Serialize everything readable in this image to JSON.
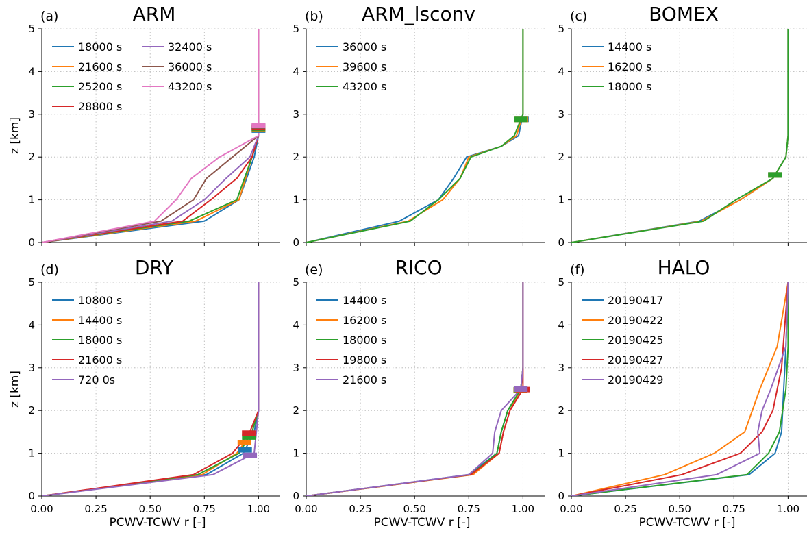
{
  "chart_data": [
    {
      "type": "line",
      "letter": "(a)",
      "title": "ARM",
      "xlabel": "",
      "ylabel": "z [km]",
      "xlim": [
        0,
        1.1
      ],
      "ylim": [
        0,
        5
      ],
      "xticks": [
        0,
        0.25,
        0.5,
        0.75,
        1.0
      ],
      "yticks": [
        0,
        1,
        2,
        3,
        4,
        5
      ],
      "xtick_labels": [
        "",
        "",
        "",
        "",
        ""
      ],
      "ytick_labels": [
        "0",
        "1",
        "2",
        "3",
        "4",
        "5"
      ],
      "grid": true,
      "legend_columns": 2,
      "series": [
        {
          "name": "18000 s",
          "color": "#1f77b4",
          "x": [
            0,
            0.75,
            0.91,
            0.98,
            1.0,
            1.0
          ],
          "y": [
            0,
            0.5,
            1.0,
            2.0,
            2.5,
            5
          ],
          "marker_z": 2.63
        },
        {
          "name": "21600 s",
          "color": "#ff7f0e",
          "x": [
            0,
            0.71,
            0.91,
            0.97,
            1.0,
            1.0
          ],
          "y": [
            0,
            0.5,
            1.0,
            2.0,
            2.5,
            5
          ],
          "marker_z": 2.65
        },
        {
          "name": "25200 s",
          "color": "#2ca02c",
          "x": [
            0,
            0.68,
            0.9,
            0.97,
            1.0,
            1.0
          ],
          "y": [
            0,
            0.5,
            1.0,
            2.0,
            2.5,
            5
          ],
          "marker_z": 2.67
        },
        {
          "name": "28800 s",
          "color": "#d62728",
          "x": [
            0,
            0.65,
            0.78,
            0.9,
            0.97,
            1.0,
            1.0
          ],
          "y": [
            0,
            0.5,
            1.0,
            1.5,
            2.0,
            2.5,
            5
          ],
          "marker_z": 2.69
        },
        {
          "name": "32400 s",
          "color": "#9467bd",
          "x": [
            0,
            0.6,
            0.75,
            0.85,
            0.96,
            1.0,
            1.0
          ],
          "y": [
            0,
            0.5,
            1.0,
            1.5,
            2.0,
            2.5,
            5
          ],
          "marker_z": 2.71
        },
        {
          "name": "36000 s",
          "color": "#8c564b",
          "x": [
            0,
            0.55,
            0.7,
            0.76,
            0.88,
            1.0,
            1.0
          ],
          "y": [
            0,
            0.5,
            1.0,
            1.5,
            2.0,
            2.5,
            5
          ],
          "marker_z": 2.72
        },
        {
          "name": "43200 s",
          "color": "#e377c2",
          "x": [
            0,
            0.52,
            0.62,
            0.69,
            0.82,
            1.0,
            1.0
          ],
          "y": [
            0,
            0.5,
            1.0,
            1.5,
            2.0,
            2.5,
            5
          ],
          "marker_z": 2.74
        }
      ]
    },
    {
      "type": "line",
      "letter": "(b)",
      "title": "ARM_lsconv",
      "xlabel": "",
      "ylabel": "",
      "xlim": [
        0,
        1.1
      ],
      "ylim": [
        0,
        5
      ],
      "xticks": [
        0,
        0.25,
        0.5,
        0.75,
        1.0
      ],
      "yticks": [
        0,
        1,
        2,
        3,
        4,
        5
      ],
      "xtick_labels": [
        "",
        "",
        "",
        "",
        ""
      ],
      "ytick_labels": [
        "0",
        "1",
        "2",
        "3",
        "4",
        "5"
      ],
      "grid": true,
      "legend_columns": 1,
      "series": [
        {
          "name": "36000 s",
          "color": "#1f77b4",
          "x": [
            0,
            0.43,
            0.61,
            0.68,
            0.74,
            0.9,
            0.98,
            1.0,
            1.0
          ],
          "y": [
            0,
            0.5,
            1.0,
            1.5,
            2.0,
            2.25,
            2.5,
            3.0,
            5
          ],
          "marker_z": 2.88
        },
        {
          "name": "39600 s",
          "color": "#ff7f0e",
          "x": [
            0,
            0.47,
            0.63,
            0.71,
            0.75,
            0.9,
            0.97,
            1.0,
            1.0
          ],
          "y": [
            0,
            0.5,
            1.0,
            1.5,
            2.0,
            2.25,
            2.5,
            3.0,
            5
          ],
          "marker_z": 2.88
        },
        {
          "name": "43200 s",
          "color": "#2ca02c",
          "x": [
            0,
            0.48,
            0.61,
            0.71,
            0.76,
            0.9,
            0.96,
            1.0,
            1.0
          ],
          "y": [
            0,
            0.5,
            1.0,
            1.5,
            2.0,
            2.25,
            2.5,
            3.0,
            5
          ],
          "marker_z": 2.88
        }
      ]
    },
    {
      "type": "line",
      "letter": "(c)",
      "title": "BOMEX",
      "xlabel": "",
      "ylabel": "",
      "xlim": [
        0,
        1.1
      ],
      "ylim": [
        0,
        5
      ],
      "xticks": [
        0,
        0.25,
        0.5,
        0.75,
        1.0
      ],
      "yticks": [
        0,
        1,
        2,
        3,
        4,
        5
      ],
      "xtick_labels": [
        "",
        "",
        "",
        "",
        ""
      ],
      "ytick_labels": [
        "0",
        "1",
        "2",
        "3",
        "4",
        "5"
      ],
      "grid": true,
      "legend_columns": 1,
      "series": [
        {
          "name": "14400 s",
          "color": "#1f77b4",
          "x": [
            0,
            0.59,
            0.78,
            0.93,
            0.99,
            1.0,
            1.0
          ],
          "y": [
            0,
            0.5,
            1.0,
            1.5,
            2.0,
            2.5,
            5
          ],
          "marker_z": 1.58
        },
        {
          "name": "16200 s",
          "color": "#ff7f0e",
          "x": [
            0,
            0.6,
            0.78,
            0.93,
            0.99,
            1.0,
            1.0
          ],
          "y": [
            0,
            0.5,
            1.0,
            1.5,
            2.0,
            2.5,
            5
          ],
          "marker_z": 1.58
        },
        {
          "name": "18000 s",
          "color": "#2ca02c",
          "x": [
            0,
            0.61,
            0.76,
            0.93,
            0.99,
            1.0,
            1.0
          ],
          "y": [
            0,
            0.5,
            1.0,
            1.5,
            2.0,
            2.5,
            5
          ],
          "marker_z": 1.58
        }
      ]
    },
    {
      "type": "line",
      "letter": "(d)",
      "title": "DRY",
      "xlabel": "PCWV-TCWV r [-]",
      "ylabel": "z [km]",
      "xlim": [
        0,
        1.1
      ],
      "ylim": [
        0,
        5
      ],
      "xticks": [
        0,
        0.25,
        0.5,
        0.75,
        1.0
      ],
      "yticks": [
        0,
        1,
        2,
        3,
        4,
        5
      ],
      "xtick_labels": [
        "0.00",
        "0.25",
        "0.50",
        "0.75",
        "1.00"
      ],
      "ytick_labels": [
        "0",
        "1",
        "2",
        "3",
        "4",
        "5"
      ],
      "grid": true,
      "legend_columns": 1,
      "series": [
        {
          "name": "10800 s",
          "color": "#1f77b4",
          "x": [
            0,
            0.76,
            0.93,
            0.98,
            1.0,
            1.0
          ],
          "y": [
            0,
            0.5,
            1.0,
            1.5,
            2.0,
            5
          ],
          "marker_z": 1.08
        },
        {
          "name": "14400 s",
          "color": "#ff7f0e",
          "x": [
            0,
            0.74,
            0.9,
            0.97,
            1.0,
            1.0
          ],
          "y": [
            0,
            0.5,
            1.0,
            1.5,
            2.0,
            5
          ],
          "marker_z": 1.25
        },
        {
          "name": "18000 s",
          "color": "#2ca02c",
          "x": [
            0,
            0.72,
            0.91,
            0.97,
            1.0,
            1.0
          ],
          "y": [
            0,
            0.5,
            1.0,
            1.5,
            2.0,
            5
          ],
          "marker_z": 1.38
        },
        {
          "name": "21600 s",
          "color": "#d62728",
          "x": [
            0,
            0.7,
            0.88,
            0.96,
            1.0,
            1.0
          ],
          "y": [
            0,
            0.5,
            1.0,
            1.5,
            2.0,
            5
          ],
          "marker_z": 1.47
        },
        {
          "name": "720 0s",
          "color": "#9467bd",
          "x": [
            0,
            0.79,
            0.98,
            0.99,
            1.0,
            1.0
          ],
          "y": [
            0,
            0.5,
            1.0,
            1.5,
            2.0,
            5
          ],
          "marker_z": 0.95
        }
      ]
    },
    {
      "type": "line",
      "letter": "(e)",
      "title": "RICO",
      "xlabel": "PCWV-TCWV r [-]",
      "ylabel": "",
      "xlim": [
        0,
        1.1
      ],
      "ylim": [
        0,
        5
      ],
      "xticks": [
        0,
        0.25,
        0.5,
        0.75,
        1.0
      ],
      "yticks": [
        0,
        1,
        2,
        3,
        4,
        5
      ],
      "xtick_labels": [
        "0.00",
        "0.25",
        "0.50",
        "0.75",
        "1.00"
      ],
      "ytick_labels": [
        "0",
        "1",
        "2",
        "3",
        "4",
        "5"
      ],
      "grid": true,
      "legend_columns": 1,
      "series": [
        {
          "name": "14400 s",
          "color": "#1f77b4",
          "x": [
            0,
            0.75,
            0.88,
            0.9,
            0.93,
            0.99,
            1.0,
            1.0
          ],
          "y": [
            0,
            0.5,
            1.0,
            1.5,
            2.0,
            2.5,
            3.0,
            5
          ],
          "marker_z": 2.48
        },
        {
          "name": "16200 s",
          "color": "#ff7f0e",
          "x": [
            0,
            0.77,
            0.89,
            0.91,
            0.94,
            0.99,
            1.0,
            1.0
          ],
          "y": [
            0,
            0.5,
            1.0,
            1.5,
            2.0,
            2.5,
            3.0,
            5
          ],
          "marker_z": 2.48
        },
        {
          "name": "18000 s",
          "color": "#2ca02c",
          "x": [
            0,
            0.76,
            0.88,
            0.9,
            0.93,
            0.99,
            1.0,
            1.0
          ],
          "y": [
            0,
            0.5,
            1.0,
            1.5,
            2.0,
            2.5,
            3.0,
            5
          ],
          "marker_z": 2.49
        },
        {
          "name": "19800 s",
          "color": "#d62728",
          "x": [
            0,
            0.76,
            0.89,
            0.91,
            0.94,
            1.0,
            1.0,
            1.0
          ],
          "y": [
            0,
            0.5,
            1.0,
            1.5,
            2.0,
            2.5,
            3.0,
            5
          ],
          "marker_z": 2.49
        },
        {
          "name": "21600 s",
          "color": "#9467bd",
          "x": [
            0,
            0.75,
            0.86,
            0.87,
            0.9,
            0.99,
            1.0,
            1.0
          ],
          "y": [
            0,
            0.5,
            1.0,
            1.5,
            2.0,
            2.5,
            3.0,
            5
          ],
          "marker_z": 2.5
        }
      ]
    },
    {
      "type": "line",
      "letter": "(f)",
      "title": "HALO",
      "xlabel": "PCWV-TCWV r [-]",
      "ylabel": "",
      "xlim": [
        0,
        1.1
      ],
      "ylim": [
        0,
        5
      ],
      "xticks": [
        0,
        0.25,
        0.5,
        0.75,
        1.0
      ],
      "yticks": [
        0,
        1,
        2,
        3,
        4,
        5
      ],
      "xtick_labels": [
        "0.00",
        "0.25",
        "0.50",
        "0.75",
        "1.00"
      ],
      "ytick_labels": [
        "0",
        "1",
        "2",
        "3",
        "4",
        "5"
      ],
      "grid": true,
      "legend_columns": 1,
      "series": [
        {
          "name": "20190417",
          "color": "#1f77b4",
          "x": [
            0,
            0.82,
            0.94,
            0.97,
            0.98,
            0.99,
            1.0
          ],
          "y": [
            0,
            0.5,
            1.0,
            1.5,
            2.5,
            3.5,
            5
          ]
        },
        {
          "name": "20190422",
          "color": "#ff7f0e",
          "x": [
            0,
            0.43,
            0.66,
            0.8,
            0.87,
            0.95,
            1.0
          ],
          "y": [
            0,
            0.5,
            1.0,
            1.5,
            2.5,
            3.5,
            5
          ]
        },
        {
          "name": "20190425",
          "color": "#2ca02c",
          "x": [
            0,
            0.81,
            0.91,
            0.96,
            0.99,
            1.0,
            1.0
          ],
          "y": [
            0,
            0.5,
            1.0,
            1.5,
            2.5,
            3.5,
            5
          ]
        },
        {
          "name": "20190427",
          "color": "#d62728",
          "x": [
            0,
            0.51,
            0.78,
            0.88,
            0.93,
            0.97,
            1.0
          ],
          "y": [
            0,
            0.5,
            1.0,
            1.5,
            2.0,
            3.0,
            5
          ]
        },
        {
          "name": "20190429",
          "color": "#9467bd",
          "x": [
            0,
            0.67,
            0.87,
            0.86,
            0.88,
            0.92,
            0.99,
            1.0
          ],
          "y": [
            0,
            0.5,
            1.0,
            1.5,
            2.0,
            2.5,
            3.5,
            5
          ]
        }
      ]
    }
  ]
}
